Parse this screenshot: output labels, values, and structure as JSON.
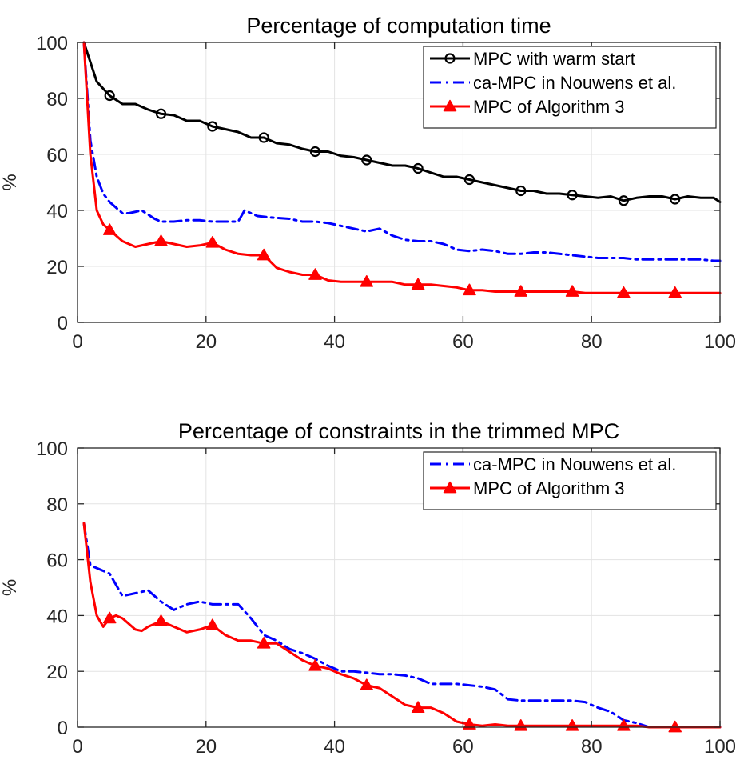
{
  "chart_data": [
    {
      "type": "line",
      "title": "Percentage of computation time",
      "xlabel": "",
      "ylabel": "%",
      "xlim": [
        0,
        100
      ],
      "ylim": [
        0,
        100
      ],
      "grid": true,
      "legend_position": "top-right",
      "xticks": [
        "0",
        "20",
        "40",
        "60",
        "80",
        "100"
      ],
      "yticks": [
        "0",
        "20",
        "40",
        "60",
        "80",
        "100"
      ],
      "series": [
        {
          "name": "MPC with warm start",
          "color": "#000000",
          "style": "solid",
          "marker": "circle",
          "x": [
            1,
            3,
            5,
            7,
            9,
            11,
            13,
            15,
            17,
            19,
            21,
            23,
            25,
            27,
            29,
            31,
            33,
            35,
            37,
            39,
            41,
            43,
            45,
            47,
            49,
            51,
            53,
            55,
            57,
            59,
            61,
            63,
            65,
            67,
            69,
            71,
            73,
            75,
            77,
            79,
            81,
            83,
            85,
            87,
            89,
            91,
            93,
            95,
            97,
            99,
            100
          ],
          "y": [
            100,
            86,
            81,
            78,
            78,
            76,
            74.5,
            74,
            72,
            72,
            70,
            69,
            68,
            66,
            66,
            64,
            63.5,
            62,
            61,
            61,
            59.5,
            59,
            58,
            57,
            56,
            56,
            55,
            53.5,
            52,
            52,
            51,
            50,
            49,
            48,
            47,
            47,
            46,
            46,
            45.5,
            45,
            44.5,
            45,
            43.5,
            44.5,
            45,
            45,
            44,
            45,
            44.5,
            44.5,
            43
          ]
        },
        {
          "name": "ca-MPC in Nouwens et al.",
          "color": "#0000ff",
          "style": "dashdot",
          "marker": "none",
          "x": [
            1,
            2,
            3,
            4,
            5,
            7,
            8,
            10,
            12,
            13,
            15,
            17,
            19,
            21,
            23,
            25,
            26,
            28,
            30,
            33,
            35,
            37,
            39,
            41,
            43,
            45,
            47,
            49,
            51,
            53,
            55,
            57,
            59,
            61,
            63,
            65,
            67,
            69,
            71,
            73,
            75,
            77,
            79,
            81,
            83,
            85,
            87,
            89,
            91,
            93,
            95,
            97,
            99,
            100
          ],
          "y": [
            100,
            65,
            52,
            46,
            43,
            39,
            39,
            40,
            37,
            36,
            36,
            36.5,
            36.5,
            36,
            36,
            36,
            40,
            38,
            37.5,
            37,
            36,
            36,
            35.5,
            34.5,
            33.5,
            32.5,
            33.5,
            31,
            29.5,
            29,
            29,
            28,
            26,
            25.5,
            26,
            25.5,
            24.5,
            24.5,
            25,
            25,
            24.5,
            24,
            23.5,
            23,
            23,
            23,
            22.5,
            22.5,
            22.5,
            22.5,
            22.5,
            22.5,
            22,
            22
          ]
        },
        {
          "name": "MPC of Algorithm 3",
          "color": "#ff0000",
          "style": "solid",
          "marker": "triangle",
          "x": [
            1,
            2,
            3,
            4,
            5,
            7,
            9,
            11,
            13,
            15,
            17,
            19,
            21,
            23,
            25,
            27,
            29,
            31,
            33,
            35,
            37,
            39,
            41,
            43,
            45,
            47,
            49,
            51,
            53,
            55,
            57,
            59,
            61,
            63,
            65,
            67,
            69,
            71,
            73,
            75,
            77,
            79,
            81,
            83,
            85,
            87,
            89,
            91,
            93,
            95,
            97,
            99,
            100
          ],
          "y": [
            100,
            60,
            40,
            35,
            33,
            29,
            27,
            28,
            29,
            28,
            27,
            27.5,
            28.5,
            26,
            24.5,
            24,
            24,
            19.5,
            18,
            17,
            17,
            15,
            14.5,
            14.5,
            14.5,
            14.5,
            14.5,
            13.5,
            13.5,
            13.5,
            13,
            12.5,
            11.5,
            11.5,
            11,
            11,
            11,
            11,
            11,
            11,
            11,
            10.5,
            10.5,
            10.5,
            10.5,
            10.5,
            10.5,
            10.5,
            10.5,
            10.5,
            10.5,
            10.5,
            10.5
          ]
        }
      ]
    },
    {
      "type": "line",
      "title": "Percentage of constraints in the trimmed MPC",
      "xlabel": "",
      "ylabel": "%",
      "xlim": [
        0,
        100
      ],
      "ylim": [
        0,
        100
      ],
      "grid": true,
      "legend_position": "top-right",
      "xticks": [
        "0",
        "20",
        "40",
        "60",
        "80",
        "100"
      ],
      "yticks": [
        "0",
        "20",
        "40",
        "60",
        "80",
        "100"
      ],
      "series": [
        {
          "name": "ca-MPC in Nouwens et al.",
          "color": "#0000ff",
          "style": "dashdot",
          "marker": "none",
          "x": [
            1,
            2,
            3,
            5,
            7,
            9,
            11,
            13,
            15,
            17,
            19,
            21,
            23,
            25,
            27,
            29,
            31,
            33,
            35,
            37,
            39,
            41,
            43,
            45,
            47,
            49,
            51,
            53,
            55,
            57,
            59,
            61,
            63,
            65,
            67,
            69,
            71,
            73,
            75,
            77,
            79,
            81,
            83,
            85,
            87,
            89,
            91,
            93,
            95,
            97,
            99,
            100
          ],
          "y": [
            73,
            58,
            57,
            55,
            47,
            48,
            49,
            45,
            42,
            44,
            45,
            44,
            44,
            44,
            39,
            33,
            31,
            28,
            26.5,
            24.5,
            22,
            20,
            20,
            19.5,
            19,
            19,
            18.5,
            17.5,
            15.5,
            15.5,
            15.5,
            15,
            14.5,
            13.5,
            10,
            9.5,
            9.5,
            9.5,
            9.5,
            9.5,
            9,
            7,
            5.5,
            2.5,
            1.5,
            0,
            0,
            0,
            0,
            0,
            0,
            0
          ]
        },
        {
          "name": "MPC of Algorithm 3",
          "color": "#ff0000",
          "style": "solid",
          "marker": "triangle",
          "x": [
            1,
            2,
            3,
            4,
            5,
            6,
            7,
            9,
            10,
            11,
            13,
            15,
            17,
            19,
            21,
            23,
            25,
            27,
            29,
            31,
            33,
            35,
            37,
            39,
            41,
            43,
            45,
            47,
            49,
            51,
            53,
            55,
            57,
            59,
            61,
            63,
            65,
            67,
            69,
            71,
            73,
            75,
            77,
            79,
            81,
            83,
            85,
            87,
            89,
            91,
            93,
            95,
            97,
            99,
            100
          ],
          "y": [
            73,
            52,
            40,
            36,
            39,
            40,
            39,
            35,
            34.5,
            36,
            38,
            36,
            34,
            35,
            36.5,
            33,
            31,
            31,
            30,
            30,
            27,
            24,
            22,
            21,
            19,
            17.5,
            15,
            14,
            11,
            8,
            7,
            7,
            5,
            2,
            1,
            0.5,
            1,
            0.5,
            0.5,
            0.5,
            0.5,
            0.5,
            0.5,
            0.5,
            0.5,
            0.5,
            0.5,
            0.5,
            0,
            0,
            0,
            0,
            0,
            0,
            0
          ]
        }
      ]
    }
  ]
}
